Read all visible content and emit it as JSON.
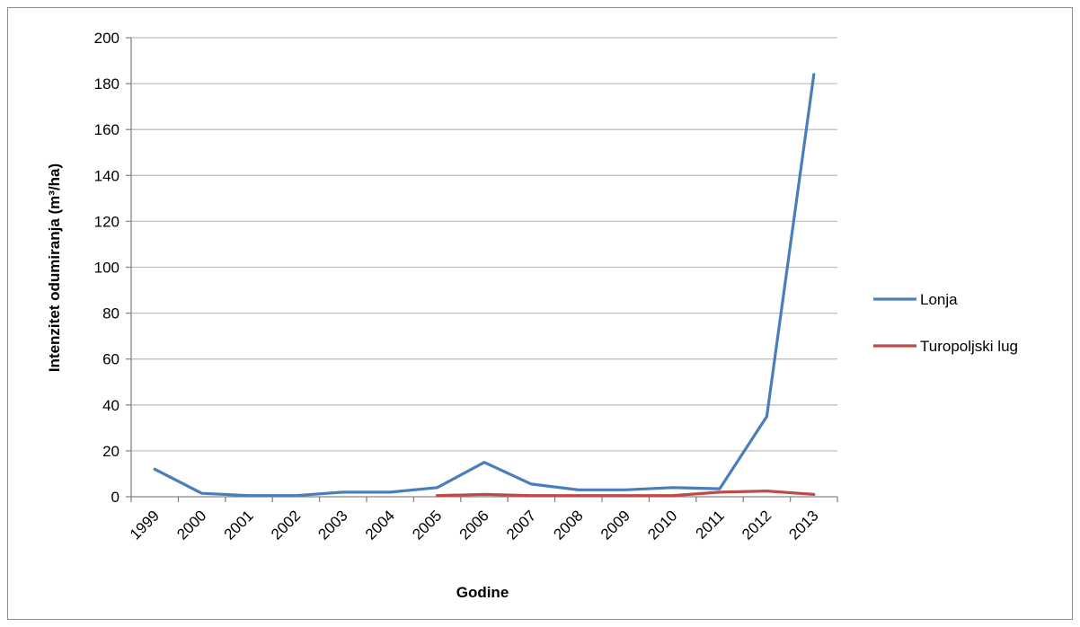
{
  "chart_data": {
    "type": "line",
    "title": "",
    "xlabel": "Godine",
    "ylabel": "Intenzitet odumiranja (m³/ha)",
    "categories": [
      "1999",
      "2000",
      "2001",
      "2002",
      "2003",
      "2004",
      "2005",
      "2006",
      "2007",
      "2008",
      "2009",
      "2010",
      "2011",
      "2012",
      "2013"
    ],
    "ylim": [
      0,
      200
    ],
    "yticks": [
      0,
      20,
      40,
      60,
      80,
      100,
      120,
      140,
      160,
      180,
      200
    ],
    "grid": true,
    "legend_position": "right",
    "series": [
      {
        "name": "Lonja",
        "color": "#4a7ebb",
        "values": [
          12,
          1.5,
          0.5,
          0.5,
          2,
          2,
          4,
          15,
          5.5,
          3,
          3,
          4,
          3.5,
          35,
          184
        ]
      },
      {
        "name": "Turopoljski lug",
        "color": "#be4b48",
        "values": [
          null,
          null,
          null,
          null,
          null,
          null,
          0.5,
          1,
          0.5,
          0.5,
          0.5,
          0.5,
          2,
          2.5,
          1
        ]
      }
    ]
  }
}
